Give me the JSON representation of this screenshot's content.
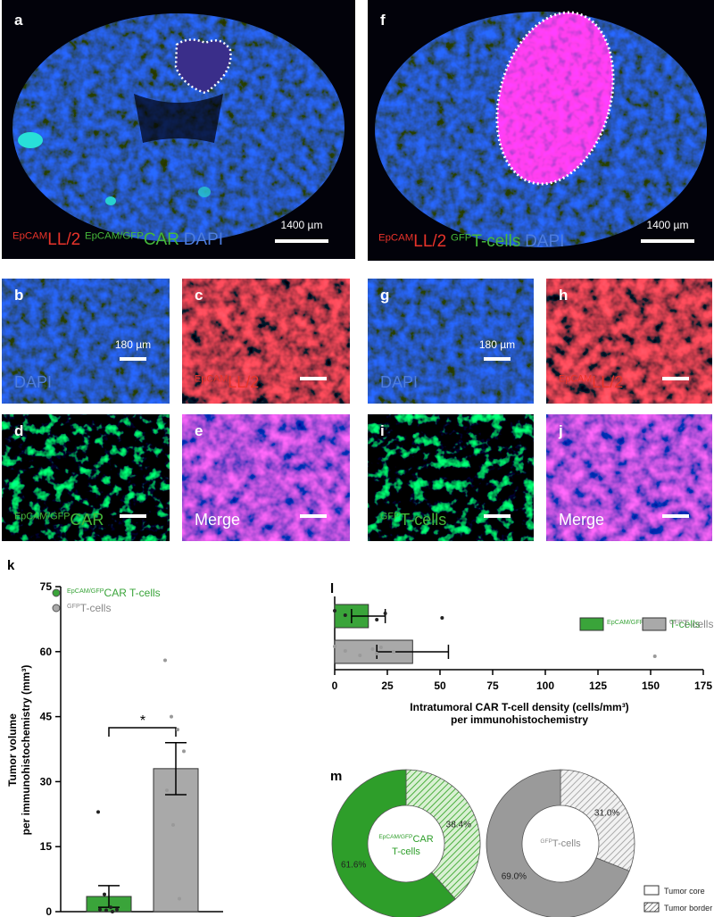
{
  "images": [
    {
      "label": "a",
      "caption": [
        "EpCAM",
        "LL/2",
        "EpCAM/GFP",
        "CAR",
        "DAPI"
      ],
      "scale": "1400 µm"
    },
    {
      "label": "f",
      "caption": [
        "EpCAM",
        "LL/2",
        "GFP",
        "T-cells",
        "DAPI"
      ],
      "scale": "1400 µm"
    },
    {
      "label": "b",
      "caption": [
        "DAPI"
      ],
      "scale": "180 µm"
    },
    {
      "label": "c",
      "caption": [
        "EpCAM",
        "LL/2"
      ]
    },
    {
      "label": "g",
      "caption": [
        "DAPI"
      ],
      "scale": "180 µm"
    },
    {
      "label": "h",
      "caption": [
        "EpCAM",
        "LL/2"
      ]
    },
    {
      "label": "d",
      "caption": [
        "EpCAM/GFP",
        "CAR"
      ]
    },
    {
      "label": "e",
      "caption": [
        "Merge"
      ]
    },
    {
      "label": "i",
      "caption": [
        "GFP",
        "T-cells"
      ]
    },
    {
      "label": "j",
      "caption": [
        "Merge"
      ]
    }
  ],
  "chart_data": [
    {
      "type": "bar",
      "label": "k",
      "ylabel": [
        "Tumor volume",
        "per immunohistochemistry (mm³)"
      ],
      "ylim": [
        0,
        75
      ],
      "yticks": [
        0,
        15,
        30,
        45,
        60,
        75
      ],
      "annotation": "*",
      "series": [
        {
          "name_sup": "EpCAM/GFP",
          "name": "CAR T-cells",
          "color": "#3aa43a",
          "values": [
            3.5
          ],
          "errors": [
            2.5
          ],
          "points": [
            23,
            4,
            1,
            0.5,
            0.5,
            0.3,
            0
          ]
        },
        {
          "name_sup": "GFP",
          "name": "T-cells",
          "color": "#a9a9a9",
          "values": [
            33
          ],
          "errors": [
            6
          ],
          "points": [
            58,
            45,
            42,
            37,
            28,
            20,
            3
          ]
        }
      ]
    },
    {
      "type": "barh",
      "label": "l",
      "xlabel": [
        "Intratumoral CAR T-cell density (cells/mm³)",
        "per immunohistochemistry"
      ],
      "xlim": [
        0,
        175
      ],
      "xticks": [
        0,
        25,
        50,
        75,
        100,
        125,
        150,
        175
      ],
      "series": [
        {
          "name_sup": "EpCAM/GFP",
          "name": "CAR T-cells",
          "color": "#3aa43a",
          "values": [
            16
          ],
          "errors": [
            8
          ],
          "points": [
            0,
            5,
            20,
            24,
            51
          ]
        },
        {
          "name_sup": "GFP",
          "name": "T-cells",
          "color": "#a9a9a9",
          "values": [
            37
          ],
          "errors": [
            17
          ],
          "points": [
            0,
            5,
            12,
            18,
            20,
            22,
            28,
            152
          ]
        }
      ]
    },
    {
      "type": "donut",
      "label": "m",
      "categories": [
        "Tumor core",
        "Tumor border"
      ],
      "pies": [
        {
          "center_sup": "EpCAM/GFP",
          "center": "CAR",
          "center2": "T-cells",
          "color": "#2e9e2a",
          "values": [
            61.6,
            38.4
          ],
          "value_labels": [
            "61.6%",
            "38.4%"
          ]
        },
        {
          "center_sup": "GFP",
          "center": "T-cells",
          "color": "#9a9a9a",
          "values": [
            69.0,
            31.0
          ],
          "value_labels": [
            "69.0%",
            "31.0%"
          ]
        }
      ]
    }
  ]
}
